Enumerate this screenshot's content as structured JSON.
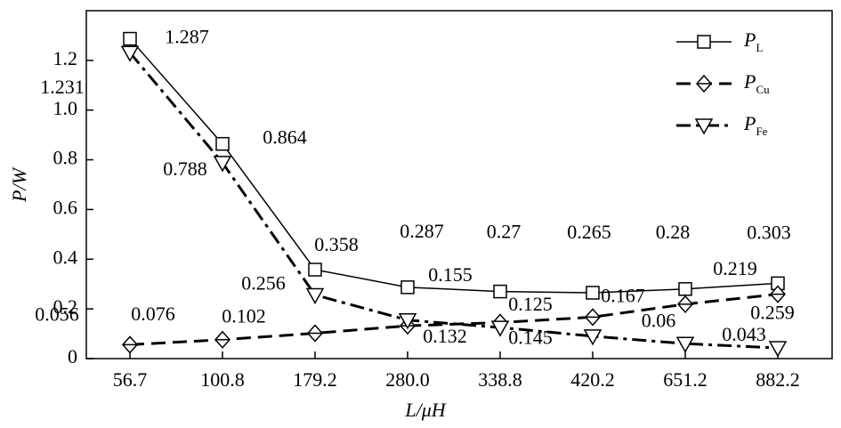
{
  "chart_data": {
    "type": "line",
    "xlabel": "L/μH",
    "ylabel": "P/W",
    "categories": [
      "56.7",
      "100.8",
      "179.2",
      "280.0",
      "338.8",
      "420.2",
      "651.2",
      "882.2"
    ],
    "ylim": [
      0,
      1.4
    ],
    "yticks": [
      0,
      0.2,
      0.4,
      0.6,
      0.8,
      {
        "value": 1,
        "label": "1.0"
      },
      1.2
    ],
    "legend": "upper right",
    "series": [
      {
        "name": "P",
        "subscript": "L",
        "color": "#000000",
        "line": "solid",
        "marker": "square",
        "values": [
          1.287,
          0.864,
          0.358,
          0.287,
          0.27,
          0.265,
          0.28,
          0.303
        ]
      },
      {
        "name": "P",
        "subscript": "Cu",
        "color": "#000000",
        "line": "dash",
        "marker": "diamond",
        "values": [
          0.056,
          0.076,
          0.102,
          0.132,
          0.145,
          0.167,
          0.219,
          0.259
        ]
      },
      {
        "name": "P",
        "subscript": "Fe",
        "color": "#000000",
        "line": "dashdot",
        "marker": "triangle-down",
        "values": [
          1.231,
          0.788,
          0.256,
          0.155,
          0.125,
          0.09,
          0.06,
          0.043
        ],
        "value_labels": [
          "1.231",
          "0.788",
          "0.256",
          "0.155",
          "0.125",
          null,
          "0.06",
          "0.043"
        ]
      }
    ]
  }
}
